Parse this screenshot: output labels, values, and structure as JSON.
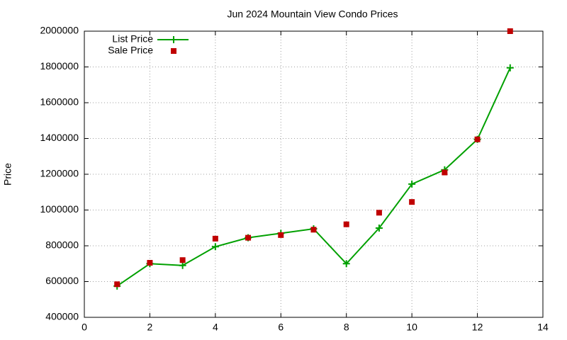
{
  "chart_data": {
    "type": "line",
    "title": "Jun 2024 Mountain View Condo Prices",
    "y_label": "Price",
    "x": [
      1,
      2,
      3,
      4,
      5,
      6,
      7,
      8,
      9,
      10,
      11,
      12,
      13
    ],
    "series": [
      {
        "name": "List Price",
        "color": "#00a000",
        "marker": "plus",
        "line": true,
        "values": [
          575000,
          700000,
          690000,
          795000,
          845000,
          870000,
          895000,
          700000,
          899000,
          1145000,
          1225000,
          1395000,
          1795000
        ]
      },
      {
        "name": "Sale Price",
        "color": "#c00000",
        "marker": "square",
        "line": false,
        "values": [
          585000,
          705000,
          720000,
          840000,
          845000,
          860000,
          890000,
          920000,
          985000,
          1045000,
          1210000,
          1395000,
          2000000
        ]
      }
    ],
    "xlim": [
      0,
      14
    ],
    "xticks": [
      0,
      2,
      4,
      6,
      8,
      10,
      12,
      14
    ],
    "ylim": [
      400000,
      2000000
    ],
    "yticks": [
      400000,
      600000,
      800000,
      1000000,
      1200000,
      1400000,
      1600000,
      1800000,
      2000000
    ],
    "grid": true,
    "legend": "upper-left"
  }
}
